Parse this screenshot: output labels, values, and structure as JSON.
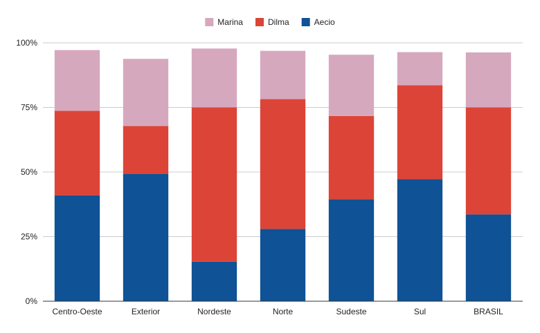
{
  "chart_data": {
    "type": "bar",
    "stacked": true,
    "categories": [
      "Centro-Oeste",
      "Exterior",
      "Nordeste",
      "Norte",
      "Sudeste",
      "Sul",
      "BRASIL"
    ],
    "series": [
      {
        "name": "Aecio",
        "color": "#0f5295",
        "values": [
          41,
          49.3,
          15.3,
          28,
          39.5,
          47.2,
          33.6
        ]
      },
      {
        "name": "Dilma",
        "color": "#dc4437",
        "values": [
          32.7,
          18.5,
          59.7,
          50.2,
          32.2,
          36.4,
          41.4
        ]
      },
      {
        "name": "Marina",
        "color": "#d6a8be",
        "values": [
          23.5,
          26,
          22.8,
          18.7,
          23.7,
          12.8,
          21.3
        ]
      }
    ],
    "legend_order": [
      "Marina",
      "Dilma",
      "Aecio"
    ],
    "legend_position": "top",
    "y_ticks": [
      "0%",
      "25%",
      "50%",
      "75%",
      "100%"
    ],
    "ylim": [
      0,
      100
    ],
    "grid": true,
    "title": "",
    "xlabel": "",
    "ylabel": ""
  }
}
